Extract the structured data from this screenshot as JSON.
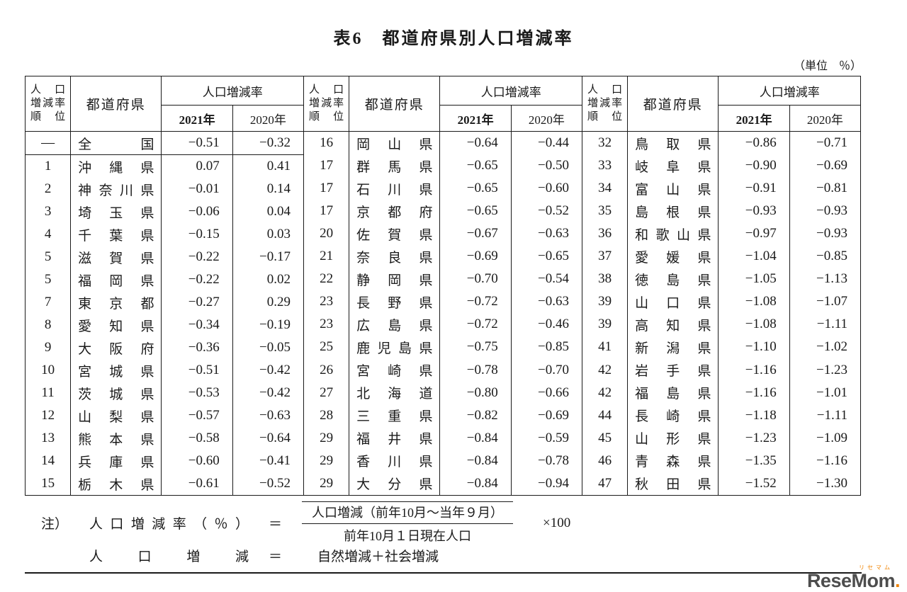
{
  "page": {
    "title": "表6　都道府県別人口増減率",
    "unit_note": "（単位　％）"
  },
  "table": {
    "headers": {
      "rank_lines": [
        "人口",
        "増減率",
        "順位"
      ],
      "prefecture": "都道府県",
      "rate_group": "人口増減率",
      "year_2021": "2021年",
      "year_2020": "2020年"
    },
    "groups": [
      {
        "rows": [
          {
            "rank": "—",
            "name": "全国",
            "v2021": "−0.51",
            "v2020": "−0.32",
            "summary": true
          },
          {
            "rank": "1",
            "name": "沖縄県",
            "v2021": "0.07",
            "v2020": "0.41"
          },
          {
            "rank": "2",
            "name": "神奈川県",
            "v2021": "−0.01",
            "v2020": "0.14"
          },
          {
            "rank": "3",
            "name": "埼玉県",
            "v2021": "−0.06",
            "v2020": "0.04"
          },
          {
            "rank": "4",
            "name": "千葉県",
            "v2021": "−0.15",
            "v2020": "0.03"
          },
          {
            "rank": "5",
            "name": "滋賀県",
            "v2021": "−0.22",
            "v2020": "−0.17"
          },
          {
            "rank": "5",
            "name": "福岡県",
            "v2021": "−0.22",
            "v2020": "0.02"
          },
          {
            "rank": "7",
            "name": "東京都",
            "v2021": "−0.27",
            "v2020": "0.29"
          },
          {
            "rank": "8",
            "name": "愛知県",
            "v2021": "−0.34",
            "v2020": "−0.19"
          },
          {
            "rank": "9",
            "name": "大阪府",
            "v2021": "−0.36",
            "v2020": "−0.05"
          },
          {
            "rank": "10",
            "name": "宮城県",
            "v2021": "−0.51",
            "v2020": "−0.42"
          },
          {
            "rank": "11",
            "name": "茨城県",
            "v2021": "−0.53",
            "v2020": "−0.42"
          },
          {
            "rank": "12",
            "name": "山梨県",
            "v2021": "−0.57",
            "v2020": "−0.63"
          },
          {
            "rank": "13",
            "name": "熊本県",
            "v2021": "−0.58",
            "v2020": "−0.64"
          },
          {
            "rank": "14",
            "name": "兵庫県",
            "v2021": "−0.60",
            "v2020": "−0.41"
          },
          {
            "rank": "15",
            "name": "栃木県",
            "v2021": "−0.61",
            "v2020": "−0.52"
          }
        ]
      },
      {
        "rows": [
          {
            "rank": "16",
            "name": "岡山県",
            "v2021": "−0.64",
            "v2020": "−0.44"
          },
          {
            "rank": "17",
            "name": "群馬県",
            "v2021": "−0.65",
            "v2020": "−0.50"
          },
          {
            "rank": "17",
            "name": "石川県",
            "v2021": "−0.65",
            "v2020": "−0.60"
          },
          {
            "rank": "17",
            "name": "京都府",
            "v2021": "−0.65",
            "v2020": "−0.52"
          },
          {
            "rank": "20",
            "name": "佐賀県",
            "v2021": "−0.67",
            "v2020": "−0.63"
          },
          {
            "rank": "21",
            "name": "奈良県",
            "v2021": "−0.69",
            "v2020": "−0.65"
          },
          {
            "rank": "22",
            "name": "静岡県",
            "v2021": "−0.70",
            "v2020": "−0.54"
          },
          {
            "rank": "23",
            "name": "長野県",
            "v2021": "−0.72",
            "v2020": "−0.63"
          },
          {
            "rank": "23",
            "name": "広島県",
            "v2021": "−0.72",
            "v2020": "−0.46"
          },
          {
            "rank": "25",
            "name": "鹿児島県",
            "v2021": "−0.75",
            "v2020": "−0.85"
          },
          {
            "rank": "26",
            "name": "宮崎県",
            "v2021": "−0.78",
            "v2020": "−0.70"
          },
          {
            "rank": "27",
            "name": "北海道",
            "v2021": "−0.80",
            "v2020": "−0.66"
          },
          {
            "rank": "28",
            "name": "三重県",
            "v2021": "−0.82",
            "v2020": "−0.69"
          },
          {
            "rank": "29",
            "name": "福井県",
            "v2021": "−0.84",
            "v2020": "−0.59"
          },
          {
            "rank": "29",
            "name": "香川県",
            "v2021": "−0.84",
            "v2020": "−0.78"
          },
          {
            "rank": "29",
            "name": "大分県",
            "v2021": "−0.84",
            "v2020": "−0.94"
          }
        ]
      },
      {
        "rows": [
          {
            "rank": "32",
            "name": "鳥取県",
            "v2021": "−0.86",
            "v2020": "−0.71"
          },
          {
            "rank": "33",
            "name": "岐阜県",
            "v2021": "−0.90",
            "v2020": "−0.69"
          },
          {
            "rank": "34",
            "name": "富山県",
            "v2021": "−0.91",
            "v2020": "−0.81"
          },
          {
            "rank": "35",
            "name": "島根県",
            "v2021": "−0.93",
            "v2020": "−0.93"
          },
          {
            "rank": "36",
            "name": "和歌山県",
            "v2021": "−0.97",
            "v2020": "−0.93"
          },
          {
            "rank": "37",
            "name": "愛媛県",
            "v2021": "−1.04",
            "v2020": "−0.85"
          },
          {
            "rank": "38",
            "name": "徳島県",
            "v2021": "−1.05",
            "v2020": "−1.13"
          },
          {
            "rank": "39",
            "name": "山口県",
            "v2021": "−1.08",
            "v2020": "−1.07"
          },
          {
            "rank": "39",
            "name": "高知県",
            "v2021": "−1.08",
            "v2020": "−1.11"
          },
          {
            "rank": "41",
            "name": "新潟県",
            "v2021": "−1.10",
            "v2020": "−1.02"
          },
          {
            "rank": "42",
            "name": "岩手県",
            "v2021": "−1.16",
            "v2020": "−1.23"
          },
          {
            "rank": "42",
            "name": "福島県",
            "v2021": "−1.16",
            "v2020": "−1.01"
          },
          {
            "rank": "44",
            "name": "長崎県",
            "v2021": "−1.18",
            "v2020": "−1.11"
          },
          {
            "rank": "45",
            "name": "山形県",
            "v2021": "−1.23",
            "v2020": "−1.09"
          },
          {
            "rank": "46",
            "name": "青森県",
            "v2021": "−1.35",
            "v2020": "−1.16"
          },
          {
            "rank": "47",
            "name": "秋田県",
            "v2021": "−1.52",
            "v2020": "−1.30"
          }
        ]
      }
    ]
  },
  "notes": {
    "label": "注）",
    "formula1_lhs": "人口増減率（％）",
    "equals": "＝",
    "numerator": "人口増減（前年10月～当年９月）",
    "denominator": "前年10月１日現在人口",
    "multiplier": "×100",
    "formula2_lhs": "人口増減",
    "formula2_rhs": "自然増減＋社会増減"
  },
  "logo": {
    "kana": "リセマム",
    "wordmark": "ReseMom",
    "dot": "."
  }
}
